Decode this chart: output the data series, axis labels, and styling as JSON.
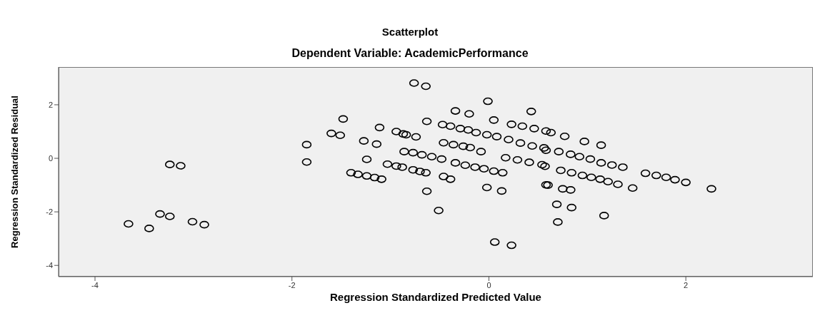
{
  "chart_data": {
    "type": "scatter",
    "title": "Scatterplot",
    "subtitle": "Dependent Variable: AcademicPerformance",
    "xlabel": "Regression Standardized Predicted Value",
    "ylabel": "Regression Standardized Residual",
    "xlim": [
      -4.37,
      3.29
    ],
    "ylim": [
      -4.42,
      3.41
    ],
    "xticks": [
      -4,
      -2,
      0,
      2
    ],
    "yticks": [
      -4,
      -2,
      0,
      2
    ],
    "marker": "circle",
    "series": [
      {
        "color": "#000000",
        "x": [
          -3.24,
          -3.13,
          -3.66,
          -3.45,
          -3.34,
          -3.24,
          -3.01,
          -2.89,
          -1.85,
          -1.85,
          -1.48,
          -1.6,
          -1.51,
          -1.27,
          -1.14,
          -1.24,
          -1.11,
          -1.4,
          -1.33,
          -1.24,
          -1.16,
          -1.09,
          -0.94,
          -0.87,
          -0.84,
          -0.74,
          -0.86,
          -0.77,
          -0.68,
          -0.58,
          -0.48,
          -1.03,
          -0.94,
          -0.88,
          -0.77,
          -0.7,
          -0.64,
          -0.76,
          -0.64,
          -0.63,
          -0.34,
          -0.2,
          -0.47,
          -0.39,
          -0.29,
          -0.21,
          -0.46,
          -0.36,
          -0.26,
          -0.19,
          -0.08,
          -0.63,
          -0.51,
          -0.46,
          -0.39,
          -0.34,
          -0.24,
          -0.14,
          -0.05,
          0.05,
          0.14,
          -0.01,
          0.05,
          -0.13,
          -0.02,
          0.08,
          0.2,
          0.32,
          0.44,
          0.56,
          0.43,
          0.23,
          0.34,
          0.46,
          0.58,
          0.17,
          0.29,
          0.41,
          0.54,
          -0.02,
          0.13,
          0.06,
          0.23,
          0.58,
          0.63,
          0.77,
          0.97,
          1.14,
          0.58,
          0.71,
          0.83,
          0.92,
          1.03,
          1.14,
          1.25,
          1.36,
          0.57,
          0.73,
          0.84,
          0.95,
          1.04,
          1.13,
          1.21,
          1.31,
          1.46,
          1.59,
          1.7,
          1.8,
          1.89,
          2.0,
          2.26,
          0.6,
          0.75,
          0.83,
          0.69,
          0.84,
          1.17,
          0.7
        ],
        "values": [
          -0.23,
          -0.28,
          -2.45,
          -2.62,
          -2.08,
          -2.17,
          -2.37,
          -2.48,
          0.51,
          -0.14,
          1.47,
          0.93,
          0.86,
          0.65,
          0.53,
          -0.04,
          1.15,
          -0.54,
          -0.6,
          -0.66,
          -0.72,
          -0.78,
          1.0,
          0.91,
          0.88,
          0.8,
          0.25,
          0.21,
          0.13,
          0.06,
          -0.03,
          -0.22,
          -0.29,
          -0.33,
          -0.43,
          -0.49,
          -0.54,
          2.81,
          2.69,
          1.38,
          1.77,
          1.66,
          1.26,
          1.2,
          1.11,
          1.06,
          0.58,
          0.51,
          0.45,
          0.4,
          0.25,
          -1.23,
          -1.95,
          -0.68,
          -0.78,
          -0.17,
          -0.26,
          -0.33,
          -0.39,
          -0.48,
          -0.54,
          2.13,
          1.43,
          0.96,
          0.88,
          0.81,
          0.7,
          0.57,
          0.46,
          0.39,
          1.75,
          1.27,
          1.2,
          1.11,
          1.02,
          0.02,
          -0.06,
          -0.15,
          -0.24,
          -1.09,
          -1.22,
          -3.13,
          -3.25,
          -0.99,
          0.96,
          0.82,
          0.63,
          0.49,
          0.3,
          0.25,
          0.15,
          0.06,
          -0.03,
          -0.17,
          -0.25,
          -0.33,
          -0.3,
          -0.45,
          -0.54,
          -0.64,
          -0.71,
          -0.78,
          -0.87,
          -0.97,
          -1.11,
          -0.56,
          -0.64,
          -0.71,
          -0.8,
          -0.9,
          -1.14,
          -1.0,
          -1.14,
          -1.18,
          -1.72,
          -1.84,
          -2.14,
          -2.38
        ]
      }
    ]
  }
}
